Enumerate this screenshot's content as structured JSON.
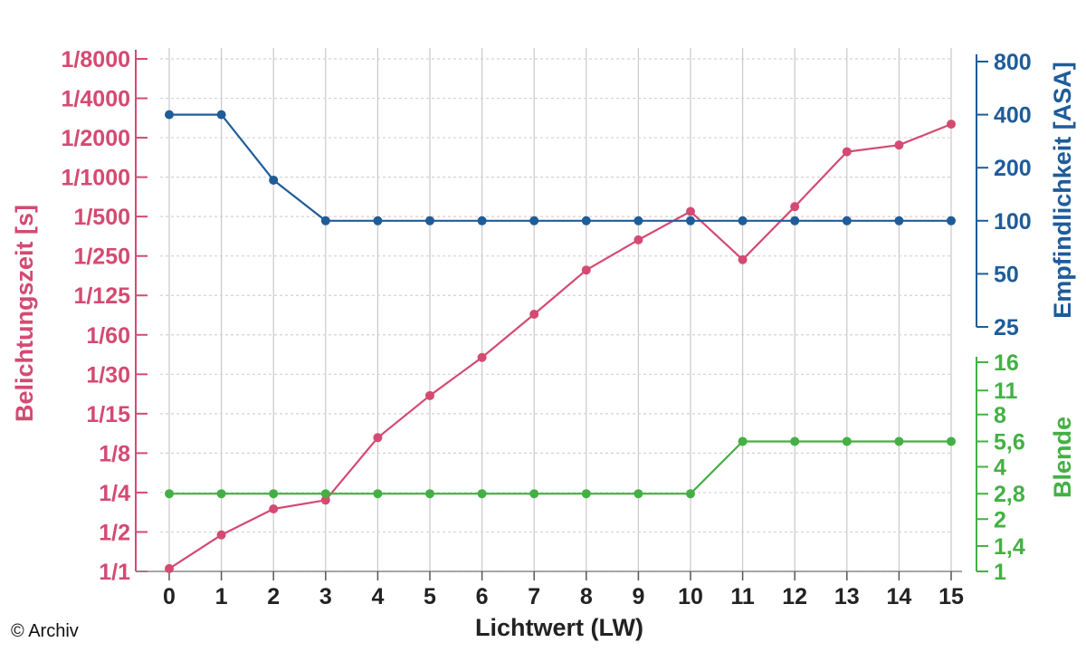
{
  "chart_data": {
    "type": "line",
    "xlabel": "Lichtwert (LW)",
    "x": [
      0,
      1,
      2,
      3,
      4,
      5,
      6,
      7,
      8,
      9,
      10,
      11,
      12,
      13,
      14,
      15
    ],
    "xlim": [
      0,
      15
    ],
    "axes": {
      "left": {
        "label": "Belichtungszeit [s]",
        "color": "#d44a72",
        "scale": "log2",
        "tick_labels": [
          "1/1",
          "1/2",
          "1/4",
          "1/8",
          "1/15",
          "1/30",
          "1/60",
          "1/125",
          "1/250",
          "1/500",
          "1/1000",
          "1/2000",
          "1/4000",
          "1/8000"
        ]
      },
      "right_top": {
        "label": "Empfindlichkeit [ASA]",
        "color": "#1f5c99",
        "scale": "log2",
        "tick_labels": [
          "25",
          "50",
          "100",
          "200",
          "400",
          "800"
        ]
      },
      "right_bottom": {
        "label": "Blende",
        "color": "#44b044",
        "scale": "log",
        "tick_labels": [
          "1",
          "1,4",
          "2",
          "2,8",
          "4",
          "5,6",
          "8",
          "11",
          "16"
        ]
      }
    },
    "series": [
      {
        "name": "Belichtungszeit [s]",
        "axis": "left",
        "unit": "1/s",
        "values": [
          1.05,
          1.9,
          3.0,
          3.5,
          10.5,
          22,
          43,
          92,
          200,
          340,
          560,
          240,
          610,
          1600,
          1800,
          2600
        ]
      },
      {
        "name": "Empfindlichkeit [ASA]",
        "axis": "right_top",
        "values": [
          400,
          400,
          170,
          100,
          100,
          100,
          100,
          100,
          100,
          100,
          100,
          100,
          100,
          100,
          100,
          100
        ]
      },
      {
        "name": "Blende",
        "axis": "right_bottom",
        "values": [
          2.8,
          2.8,
          2.8,
          2.8,
          2.8,
          2.8,
          2.8,
          2.8,
          2.8,
          2.8,
          2.8,
          5.6,
          5.6,
          5.6,
          5.6,
          5.6
        ]
      }
    ],
    "grid": true
  },
  "credit": "© Archiv"
}
